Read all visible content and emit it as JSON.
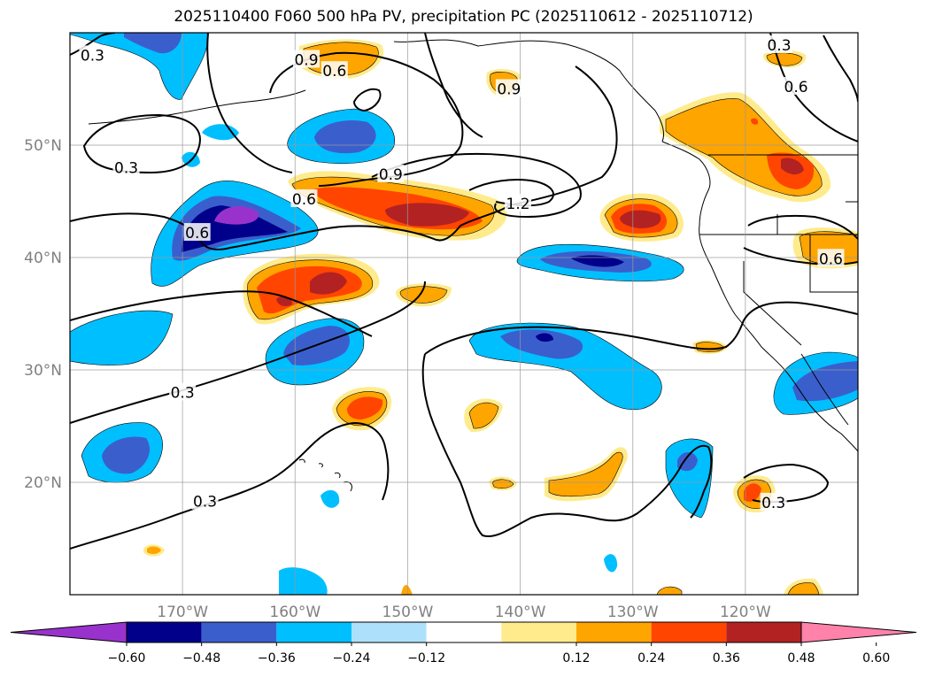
{
  "title": "2025110400 F060 500 hPa PV, precipitation PC (2025110612 - 2025110712)",
  "map": {
    "lon_range": [
      -180,
      -110
    ],
    "lat_range": [
      10,
      60
    ],
    "lon_gridlines": [
      -170,
      -160,
      -150,
      -140,
      -130,
      -120
    ],
    "lat_gridlines": [
      20,
      30,
      40,
      50
    ],
    "lon_labels": [
      "170°W",
      "160°W",
      "150°W",
      "140°W",
      "130°W",
      "120°W"
    ],
    "lat_labels": [
      "20°N",
      "30°N",
      "40°N",
      "50°N"
    ],
    "grid": true
  },
  "colorbar": {
    "ticks": [
      "−0.60",
      "−0.48",
      "−0.36",
      "−0.24",
      "−0.12",
      "0.12",
      "0.24",
      "0.36",
      "0.48",
      "0.60"
    ],
    "colors": [
      "#9932CC",
      "#00008B",
      "#3A5FCD",
      "#00BFFF",
      "#ADE0FA",
      "#FFFFFF",
      "#FFEB8C",
      "#FFA500",
      "#FF4500",
      "#B22222",
      "#FF82AB"
    ],
    "extend": "both"
  },
  "chart_data": {
    "type": "heatmap",
    "title": "2025110400 F060 500 hPa PV, precipitation PC (2025110612 - 2025110712)",
    "xlabel": "",
    "ylabel": "",
    "xlim": [
      -180,
      -110
    ],
    "ylim": [
      10,
      60
    ],
    "contour_levels": [
      0.3,
      0.6,
      0.9,
      1.2
    ],
    "contour_labels": [
      {
        "text": "0.3",
        "lon": -178,
        "lat": 58
      },
      {
        "text": "0.9",
        "lon": -159,
        "lat": 57.6
      },
      {
        "text": "0.6",
        "lon": -156.5,
        "lat": 56.6
      },
      {
        "text": "0.9",
        "lon": -141,
        "lat": 55
      },
      {
        "text": "0.3",
        "lon": -117,
        "lat": 58.9
      },
      {
        "text": "0.6",
        "lon": -115.5,
        "lat": 55.2
      },
      {
        "text": "0.3",
        "lon": -175,
        "lat": 48
      },
      {
        "text": "0.9",
        "lon": -151.5,
        "lat": 47.4
      },
      {
        "text": "0.6",
        "lon": -159.2,
        "lat": 45.2
      },
      {
        "text": "1.2",
        "lon": -140.2,
        "lat": 44.8
      },
      {
        "text": "0.6",
        "lon": -168.7,
        "lat": 42.2
      },
      {
        "text": "0.6",
        "lon": -112.4,
        "lat": 39.9
      },
      {
        "text": "0.3",
        "lon": -170,
        "lat": 28
      },
      {
        "text": "0.3",
        "lon": -168,
        "lat": 18.3
      },
      {
        "text": "0.3",
        "lon": -117.5,
        "lat": 18.2
      }
    ],
    "precip_pc_regions": [
      {
        "lon": -165,
        "lat": 43.5,
        "value": -0.6
      },
      {
        "lon": -172,
        "lat": 42,
        "value": -0.48
      },
      {
        "lon": -153.5,
        "lat": 51,
        "value": -0.36
      },
      {
        "lon": -139,
        "lat": 39.5,
        "value": -0.48
      },
      {
        "lon": -140,
        "lat": 33,
        "value": -0.48
      },
      {
        "lon": -157,
        "lat": 32.5,
        "value": -0.36
      },
      {
        "lon": -175,
        "lat": 22.5,
        "value": -0.36
      },
      {
        "lon": -177,
        "lat": 32.5,
        "value": -0.24
      },
      {
        "lon": -114,
        "lat": 29,
        "value": -0.36
      },
      {
        "lon": -125.5,
        "lat": 21.5,
        "value": -0.24
      },
      {
        "lon": -177,
        "lat": 59,
        "value": -0.36
      },
      {
        "lon": -148,
        "lat": 43.5,
        "value": 0.48
      },
      {
        "lon": -159,
        "lat": 37.5,
        "value": 0.48
      },
      {
        "lon": -129.5,
        "lat": 43.5,
        "value": 0.48
      },
      {
        "lon": -115.5,
        "lat": 48,
        "value": 0.48
      },
      {
        "lon": -119.5,
        "lat": 19.5,
        "value": 0.36
      },
      {
        "lon": -153.5,
        "lat": 27,
        "value": 0.36
      },
      {
        "lon": -121.5,
        "lat": 51.5,
        "value": 0.24
      },
      {
        "lon": -157.5,
        "lat": 58,
        "value": 0.24
      },
      {
        "lon": -131,
        "lat": 20,
        "value": 0.24
      },
      {
        "lon": -144.5,
        "lat": 26,
        "value": 0.24
      },
      {
        "lon": -147.5,
        "lat": 37.2,
        "value": 0.24
      },
      {
        "lon": -112.5,
        "lat": 41,
        "value": 0.24
      }
    ]
  }
}
